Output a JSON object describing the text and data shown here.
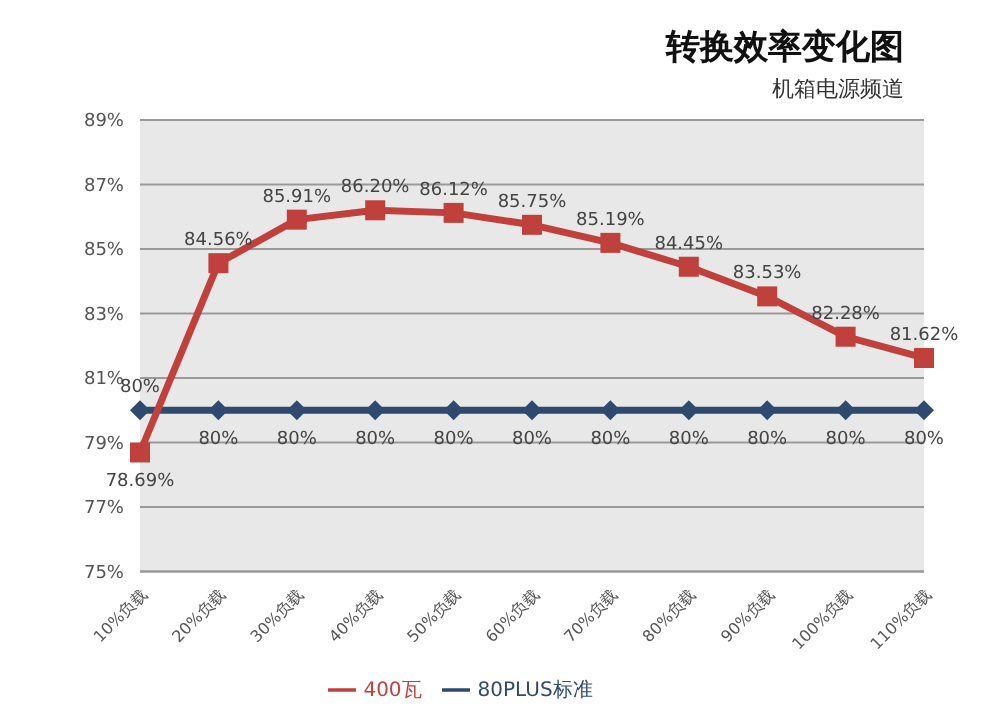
{
  "chart_data": {
    "type": "line",
    "title": "转换效率变化图",
    "subtitle": "机箱电源频道",
    "categories": [
      "10%负载",
      "20%负载",
      "30%负载",
      "40%负载",
      "50%负载",
      "60%负载",
      "70%负载",
      "80%负载",
      "90%负载",
      "100%负载",
      "110%负载"
    ],
    "series": [
      {
        "name": "80PLUS标准",
        "color": "#2e4a6e",
        "marker": "diamond",
        "values": [
          80,
          80,
          80,
          80,
          80,
          80,
          80,
          80,
          80,
          80,
          80
        ],
        "value_labels": [
          "80%",
          "80%",
          "80%",
          "80%",
          "80%",
          "80%",
          "80%",
          "80%",
          "80%",
          "80%",
          "80%"
        ]
      },
      {
        "name": "400瓦",
        "color": "#c0403c",
        "marker": "square",
        "values": [
          78.69,
          84.56,
          85.91,
          86.2,
          86.12,
          85.75,
          85.19,
          84.45,
          83.53,
          82.28,
          81.62
        ],
        "value_labels": [
          "78.69%",
          "84.56%",
          "85.91%",
          "86.20%",
          "86.12%",
          "85.75%",
          "85.19%",
          "84.45%",
          "83.53%",
          "82.28%",
          "81.62%"
        ]
      }
    ],
    "ylim": [
      75,
      89
    ],
    "yticks": [
      {
        "value": 75,
        "label": "75%"
      },
      {
        "value": 77,
        "label": "77%"
      },
      {
        "value": 79,
        "label": "79%"
      },
      {
        "value": 81,
        "label": "81%"
      },
      {
        "value": 83,
        "label": "83%"
      },
      {
        "value": 85,
        "label": "85%"
      },
      {
        "value": 87,
        "label": "87%"
      },
      {
        "value": 89,
        "label": "89%"
      }
    ],
    "grid": "y",
    "legend": "bottom"
  }
}
